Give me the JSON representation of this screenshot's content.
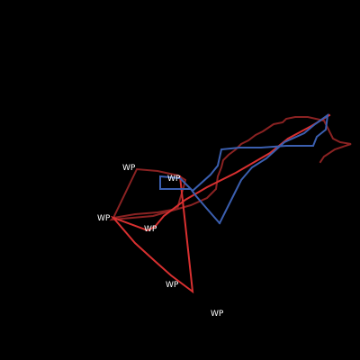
{
  "colors": {
    "background": "#000000",
    "route_dark_red": "#8a2222",
    "route_red": "#d83030",
    "route_blue": "#3b5fb0",
    "label": "#ffffff"
  },
  "waypoints": [
    {
      "label": "WP"
    },
    {
      "label": "WP"
    },
    {
      "label": "WP"
    },
    {
      "label": "WP"
    },
    {
      "label": "WP"
    },
    {
      "label": "WP"
    }
  ]
}
